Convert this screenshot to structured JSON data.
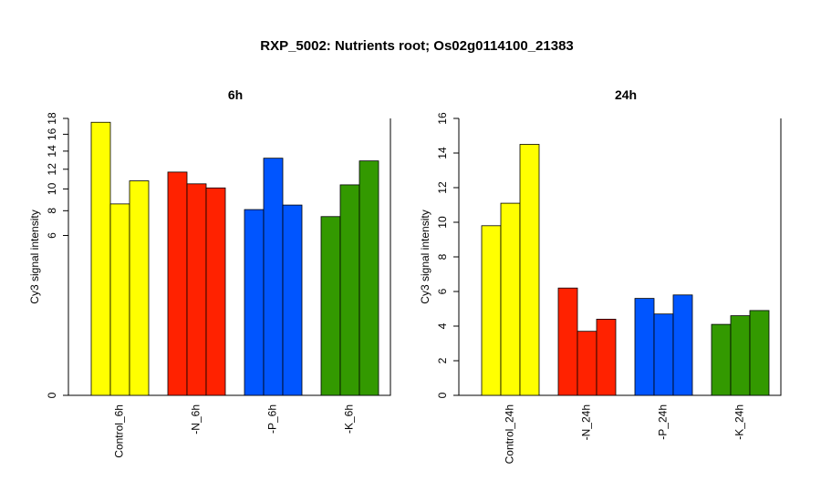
{
  "title": "RXP_5002: Nutrients root; Os02g0114100_21383",
  "colors": {
    "Control": "#ffff00",
    "N": "#ff2200",
    "P": "#0055ff",
    "K": "#339900"
  },
  "chart_data": [
    {
      "type": "bar",
      "title": "6h",
      "ylabel": "Cy3 signal intensity",
      "ylim": [
        0,
        18
      ],
      "y_scale": "sqrt",
      "yticks": [
        0,
        6,
        8,
        10,
        12,
        14,
        16,
        18
      ],
      "categories": [
        "Control_6h",
        "-N_6h",
        "-P_6h",
        "-K_6h"
      ],
      "bar_colors": [
        "Control",
        "N",
        "P",
        "K"
      ],
      "values": [
        [
          17.5,
          8.6,
          10.8
        ],
        [
          11.7,
          10.5,
          10.1
        ],
        [
          8.1,
          13.2,
          8.5
        ],
        [
          7.5,
          10.4,
          12.9
        ]
      ]
    },
    {
      "type": "bar",
      "title": "24h",
      "ylabel": "Cy3 signal intensity",
      "ylim": [
        0,
        16
      ],
      "y_scale": "linear",
      "yticks": [
        0,
        2,
        4,
        6,
        8,
        10,
        12,
        14,
        16
      ],
      "categories": [
        "Control_24h",
        "-N_24h",
        "-P_24h",
        "-K_24h"
      ],
      "bar_colors": [
        "Control",
        "N",
        "P",
        "K"
      ],
      "values": [
        [
          9.8,
          11.1,
          14.5
        ],
        [
          6.2,
          3.7,
          4.4
        ],
        [
          5.6,
          4.7,
          5.8
        ],
        [
          4.1,
          4.6,
          4.9
        ]
      ]
    }
  ]
}
